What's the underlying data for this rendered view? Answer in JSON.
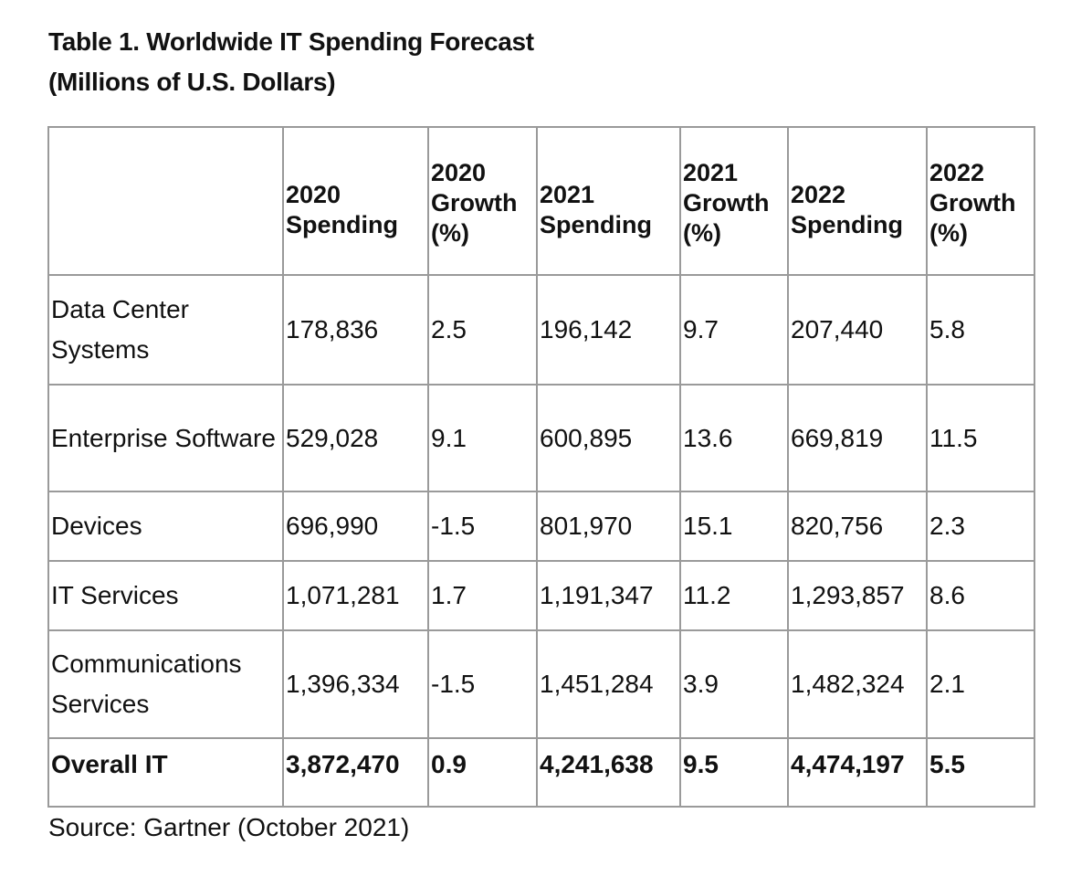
{
  "title_line1": "Table 1. Worldwide IT Spending Forecast",
  "title_line2": "(Millions of U.S. Dollars)",
  "headers": [
    "",
    "2020 Spending",
    "2020 Growth (%)",
    "2021 Spending",
    "2021 Growth (%)",
    "2022 Spending",
    "2022 Growth (%)"
  ],
  "rows": [
    [
      "Data Center Systems",
      "178,836",
      "2.5",
      "196,142",
      "9.7",
      "207,440",
      "5.8"
    ],
    [
      "Enterprise Software",
      "529,028",
      "9.1",
      "600,895",
      "13.6",
      "669,819",
      "11.5"
    ],
    [
      "Devices",
      "696,990",
      "-1.5",
      "801,970",
      "15.1",
      "820,756",
      "2.3"
    ],
    [
      "IT Services",
      "1,071,281",
      "1.7",
      "1,191,347",
      "11.2",
      "1,293,857",
      "8.6"
    ],
    [
      "Communications Services",
      "1,396,334",
      "-1.5",
      "1,451,284",
      "3.9",
      "1,482,324",
      "2.1"
    ],
    [
      "Overall IT",
      "3,872,470",
      "0.9",
      "4,241,638",
      "9.5",
      "4,474,197",
      "5.5"
    ]
  ],
  "source": "Source: Gartner (October 2021)"
}
